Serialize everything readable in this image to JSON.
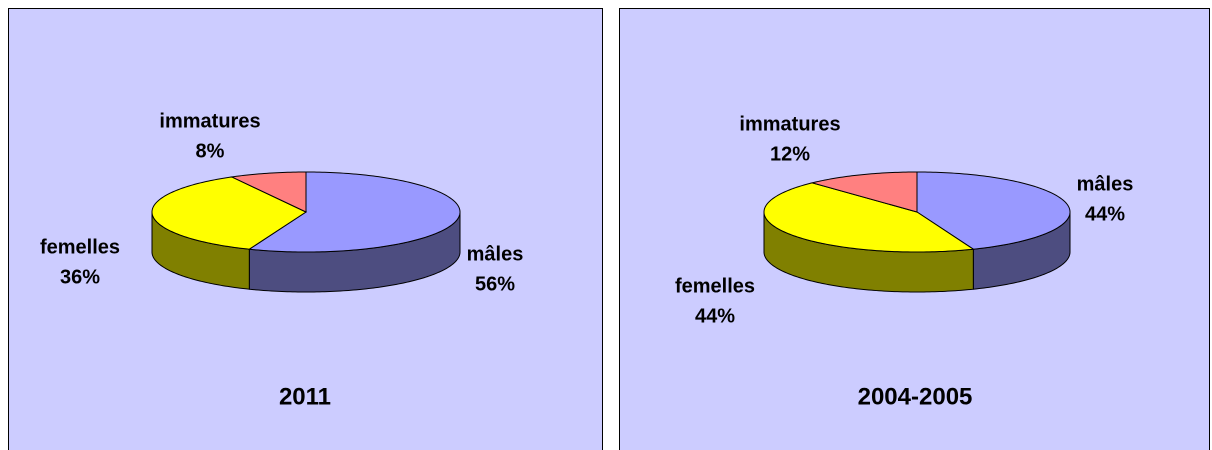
{
  "chart_data": [
    {
      "type": "pie",
      "title": "2011",
      "categories": [
        "mâles",
        "femelles",
        "immatures"
      ],
      "values": [
        56,
        36,
        8
      ],
      "value_labels": [
        "56%",
        "36%",
        "8%"
      ],
      "colors": [
        "#9999ff",
        "#ffff00",
        "#ff8080"
      ]
    },
    {
      "type": "pie",
      "title": "2004-2005",
      "categories": [
        "mâles",
        "femelles",
        "immatures"
      ],
      "values": [
        44,
        44,
        12
      ],
      "value_labels": [
        "44%",
        "44%",
        "12%"
      ],
      "colors": [
        "#9999ff",
        "#ffff00",
        "#ff8080"
      ]
    }
  ]
}
